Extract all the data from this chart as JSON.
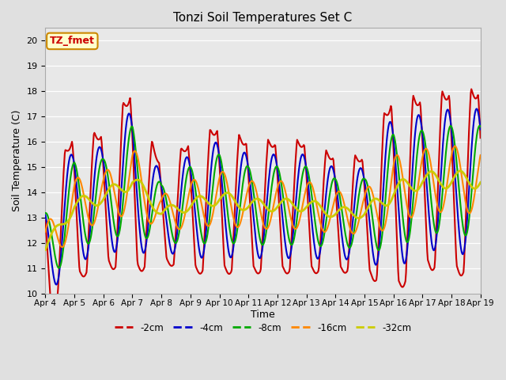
{
  "title": "Tonzi Soil Temperatures Set C",
  "xlabel": "Time",
  "ylabel": "Soil Temperature (C)",
  "ylim": [
    10.0,
    20.5
  ],
  "yticks": [
    10.0,
    11.0,
    12.0,
    13.0,
    14.0,
    15.0,
    16.0,
    17.0,
    18.0,
    19.0,
    20.0
  ],
  "legend_label": "TZ_fmet",
  "line_labels": [
    "-2cm",
    "-4cm",
    "-8cm",
    "-16cm",
    "-32cm"
  ],
  "line_colors": [
    "#cc0000",
    "#0000cc",
    "#00aa00",
    "#ff8800",
    "#cccc00"
  ],
  "line_widths": [
    1.5,
    1.5,
    1.5,
    1.5,
    2.0
  ],
  "xtick_labels": [
    "Apr 4",
    "Apr 5",
    "Apr 6",
    "Apr 7",
    "Apr 8",
    "Apr 9",
    "Apr 10",
    "Apr 11",
    "Apr 12",
    "Apr 13",
    "Apr 14",
    "Apr 15",
    "Apr 16",
    "Apr 17",
    "Apr 18",
    "Apr 19"
  ],
  "bg_color": "#e0e0e0",
  "plot_bg_color": "#e8e8e8",
  "annotation_box_color": "#ffffcc",
  "annotation_text_color": "#cc0000",
  "annotation_edge_color": "#cc8800",
  "n_days": 15,
  "pts_per_day": 48
}
